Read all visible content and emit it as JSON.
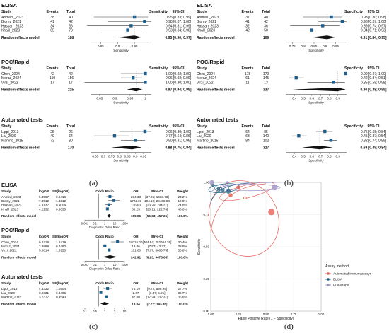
{
  "captions": [
    "(a)",
    "(b)",
    "(c)",
    "(d)"
  ],
  "panel_a": {
    "metric_header": "Sensitivity",
    "ci_header": "95% CI",
    "study_header": "Study",
    "events_header": "Events",
    "total_header": "Total",
    "axis_label": "Sensitivity",
    "random_label": "Random effects model",
    "groups": [
      {
        "title": "ELISA",
        "ticks": [
          "0.85",
          "0.9",
          "0.95"
        ],
        "axis_range": [
          0.82,
          1.0
        ],
        "studies": [
          {
            "name": "Ahmed _2023",
            "events": "38",
            "total": "40",
            "est": 0.95,
            "lo": 0.83,
            "hi": 0.99,
            "ci": "0.95  [0.83; 0.99]"
          },
          {
            "name": "Biomy_2021",
            "events": "41",
            "total": "42",
            "est": 0.98,
            "lo": 0.87,
            "hi": 1.0,
            "ci": "0.98  [0.87; 1.00]"
          },
          {
            "name": "Hassan_2023",
            "events": "34",
            "total": "36",
            "est": 0.94,
            "lo": 0.81,
            "hi": 0.99,
            "ci": "0.94  [0.81; 0.99]"
          },
          {
            "name": "Khalil_2023",
            "events": "65",
            "total": "70",
            "est": 0.93,
            "lo": 0.84,
            "hi": 0.98,
            "ci": "0.93  [0.84; 0.98]"
          }
        ],
        "random": {
          "total": "188",
          "est": 0.95,
          "lo": 0.9,
          "hi": 0.97,
          "ci": "0.95  [0.90; 0.97]"
        }
      },
      {
        "title": "POC/Rapid",
        "ticks": [
          "0.85",
          "0.9",
          "0.95",
          "1"
        ],
        "axis_range": [
          0.82,
          1.02
        ],
        "studies": [
          {
            "name": "Chen_2024",
            "events": "42",
            "total": "42",
            "est": 1.0,
            "lo": 0.92,
            "hi": 1.0,
            "ci": "1.00  [0.92; 1.00]"
          },
          {
            "name": "Moraz_2024",
            "events": "150",
            "total": "156",
            "est": 0.96,
            "lo": 0.92,
            "hi": 0.99,
            "ci": "0.96  [0.92; 0.99]"
          },
          {
            "name": "Virzi_2022",
            "events": "17",
            "total": "17",
            "est": 1.0,
            "lo": 0.8,
            "hi": 1.0,
            "ci": "1.00  [0.80; 1.00]"
          }
        ],
        "random": {
          "total": "215",
          "est": 0.97,
          "lo": 0.94,
          "hi": 0.99,
          "ci": "0.97  [0.94; 0.99]"
        }
      },
      {
        "title": "Automated tests",
        "ticks": [
          "0.65",
          "0.7",
          "0.75",
          "0.8",
          "0.85",
          "0.9",
          "0.95"
        ],
        "axis_range": [
          0.62,
          1.0
        ],
        "studies": [
          {
            "name": "Lippi_2013",
            "events": "25",
            "total": "26",
            "est": 0.96,
            "lo": 0.8,
            "hi": 1.0,
            "ci": "0.96  [0.80; 1.00]"
          },
          {
            "name": "Liu_2020",
            "events": "49",
            "total": "64",
            "est": 0.77,
            "lo": 0.64,
            "hi": 0.86,
            "ci": "0.77  [0.64; 0.86]"
          },
          {
            "name": "Martino_2015",
            "events": "72",
            "total": "80",
            "est": 0.9,
            "lo": 0.81,
            "hi": 0.96,
            "ci": "0.90  [0.81; 0.96]"
          }
        ],
        "random": {
          "total": "170",
          "est": 0.88,
          "lo": 0.75,
          "hi": 0.94,
          "ci": "0.88  [0.75; 0.94]"
        }
      }
    ]
  },
  "panel_b": {
    "metric_header": "Specificity",
    "ci_header": "95% CI",
    "study_header": "Study",
    "events_header": "Events",
    "total_header": "Total",
    "axis_label": "Specificity",
    "random_label": "Random effects model",
    "groups": [
      {
        "title": "ELISA",
        "ticks": [
          "0.75",
          "0.8",
          "0.85",
          "0.9",
          "0.95"
        ],
        "axis_range": [
          0.72,
          1.0
        ],
        "studies": [
          {
            "name": "Ahmed _2023",
            "events": "37",
            "total": "40",
            "est": 0.93,
            "lo": 0.8,
            "hi": 0.98,
            "ci": "0.93  [0.80; 0.98]"
          },
          {
            "name": "Biomy_2021",
            "events": "41",
            "total": "42",
            "est": 0.98,
            "lo": 0.87,
            "hi": 1.0,
            "ci": "0.98  [0.87; 1.00]"
          },
          {
            "name": "Hassan_2023",
            "events": "32",
            "total": "36",
            "est": 0.89,
            "lo": 0.74,
            "hi": 0.97,
            "ci": "0.89  [0.74; 0.97]"
          },
          {
            "name": "Khalil_2023",
            "events": "42",
            "total": "50",
            "est": 0.84,
            "lo": 0.71,
            "hi": 0.93,
            "ci": "0.84  [0.71; 0.93]"
          }
        ],
        "random": {
          "total": "169",
          "est": 0.91,
          "lo": 0.84,
          "hi": 0.95,
          "ci": "0.91  [0.84; 0.95]"
        }
      },
      {
        "title": "POC/Rapid",
        "ticks": [
          "0.4",
          "0.5",
          "0.6",
          "0.7",
          "0.8",
          "0.9"
        ],
        "axis_range": [
          0.3,
          1.0
        ],
        "studies": [
          {
            "name": "Chen_2024",
            "events": "178",
            "total": "179",
            "est": 0.99,
            "lo": 0.97,
            "hi": 1.0,
            "ci": "0.99  [0.97; 1.00]"
          },
          {
            "name": "Moraz_2024",
            "events": "61",
            "total": "145",
            "est": 0.42,
            "lo": 0.34,
            "hi": 0.51,
            "ci": "0.42  [0.34; 0.51]"
          },
          {
            "name": "Virzi_2022",
            "events": "11",
            "total": "13",
            "est": 0.85,
            "lo": 0.55,
            "hi": 0.98,
            "ci": "0.85  [0.55; 0.98]"
          }
        ],
        "random": {
          "total": "337",
          "est": 0.9,
          "lo": 0.38,
          "hi": 0.99,
          "ci": "0.90  [0.38; 0.99]"
        }
      },
      {
        "title": "Automated tests",
        "ticks": [
          "0.4",
          "0.5",
          "0.6",
          "0.7",
          "0.8",
          "0.9"
        ],
        "axis_range": [
          0.3,
          1.0
        ],
        "studies": [
          {
            "name": "Lippi_2013",
            "events": "64",
            "total": "85",
            "est": 0.75,
            "lo": 0.65,
            "hi": 0.84,
            "ci": "0.75  [0.65; 0.84]"
          },
          {
            "name": "Liu_2020",
            "events": "63",
            "total": "140",
            "est": 0.45,
            "lo": 0.37,
            "hi": 0.54,
            "ci": "0.45  [0.37; 0.54]"
          },
          {
            "name": "Martino_2015",
            "events": "84",
            "total": "102",
            "est": 0.82,
            "lo": 0.74,
            "hi": 0.89,
            "ci": "0.82  [0.74; 0.89]"
          }
        ],
        "random": {
          "total": "327",
          "est": 0.69,
          "lo": 0.49,
          "hi": 0.84,
          "ci": "0.69  [0.49; 0.84]"
        }
      }
    ]
  },
  "panel_c": {
    "headers": {
      "study": "Study",
      "logor": "logOR",
      "se": "SE(logOR)",
      "plot": "Odds Ratio",
      "or": "OR",
      "ci": "95%-CI",
      "weight": "Weight"
    },
    "axis_label": "Diagnostic Odds Ratio",
    "random_label": "Random effects model",
    "groups": [
      {
        "title": "ELISA",
        "ticks": [
          "0.001",
          "0.1",
          "1",
          "10",
          "1000"
        ],
        "studies": [
          {
            "name": "Ahmed_2023",
            "logor": "5.4567",
            "se": "0.9416",
            "or": "234.33",
            "ci": "[37.01; 1483.73]",
            "weight": "23.2%",
            "est": 234.33,
            "lo": 37.01,
            "hi": 1483.73
          },
          {
            "name": "Biomy_2021",
            "logor": "7.4512",
            "se": "1.4312",
            "or": "1722.00",
            "ci": "[104.19; 28458.68]",
            "weight": "12.0%",
            "est": 1722,
            "lo": 104.19,
            "hi": 28458.68
          },
          {
            "name": "Hassan_2023",
            "logor": "4.9137",
            "se": "0.9004",
            "or": "136.00",
            "ci": "[23.29; 794.21]",
            "weight": "24.8%",
            "est": 136,
            "lo": 23.29,
            "hi": 794.21
          },
          {
            "name": "Khalil_2023",
            "logor": "4.2232",
            "se": "0.6035",
            "or": "68.25",
            "ci": "[20.91; 222.74]",
            "weight": "40.0%",
            "est": 68.25,
            "lo": 20.91,
            "hi": 222.74
          }
        ],
        "random": {
          "or": "159.06",
          "ci": "[55.33; 457.25]",
          "weight": "100.0%",
          "est": 159.06,
          "lo": 55.33,
          "hi": 457.25
        }
      },
      {
        "title": "POC/Rapid",
        "ticks": [
          "0.001",
          "0.1",
          "1",
          "10",
          "1000"
        ],
        "studies": [
          {
            "name": "Chen_2024",
            "logor": "9.2218",
            "se": "1.6419",
            "or": "10115.00",
            "ci": "[404.94; 252664.39]",
            "weight": "30.4%",
            "est": 10115,
            "lo": 404.94,
            "hi": 252664.39
          },
          {
            "name": "Moraz_2024",
            "logor": "2.9889",
            "se": "0.4490",
            "or": "19.86",
            "ci": "[7.53; 43.77]",
            "weight": "38.8%",
            "est": 19.86,
            "lo": 7.53,
            "hi": 43.77
          },
          {
            "name": "Virzi_2022",
            "logor": "5.0814",
            "se": "1.5950",
            "or": "161.00",
            "ci": "[7.07; 3666.75]",
            "weight": "30.8%",
            "est": 161,
            "lo": 7.07,
            "hi": 3666.75
          }
        ],
        "random": {
          "or": "242.91",
          "ci": "[6.23; 9475.65]",
          "weight": "100.0%",
          "est": 242.91,
          "lo": 6.23,
          "hi": 9475.65
        }
      },
      {
        "title": "Automated tests",
        "ticks": [
          "0.1",
          "0.5",
          "1",
          "2",
          "10"
        ],
        "studies": [
          {
            "name": "Lippi_2013",
            "logor": "4.3332",
            "se": "1.0504",
            "or": "76.19",
            "ci": "[9.72; 596.99]",
            "weight": "27.7%",
            "est": 76.19,
            "lo": 9.72,
            "hi": 596.99
          },
          {
            "name": "Liu_2020",
            "logor": "0.9831",
            "se": "0.3405",
            "or": "2.67",
            "ci": "[1.37; 5.21]",
            "weight": "36.7%",
            "est": 2.67,
            "lo": 1.37,
            "hi": 5.21
          },
          {
            "name": "Martino_2015",
            "logor": "3.7377",
            "se": "0.4543",
            "or": "42.00",
            "ci": "[17.24; 102.31]",
            "weight": "35.6%",
            "est": 42,
            "lo": 17.24,
            "hi": 102.31
          }
        ],
        "random": {
          "or": "18.04",
          "ci": "[2.27; 143.36]",
          "weight": "100.0%",
          "est": 18.04,
          "lo": 2.27,
          "hi": 143.36
        }
      }
    ]
  },
  "panel_d": {
    "xlabel": "False Positive Rate (1 − Specificity)",
    "ylabel": "Sensitivity",
    "xticks": [
      "0.00",
      "0.25",
      "0.50",
      "0.75",
      "1.00"
    ],
    "yticks": [
      "0.00",
      "0.25",
      "0.50",
      "0.75",
      "1.00"
    ],
    "legend_title": "Assay method",
    "legend": [
      {
        "label": "Automated immunoassays",
        "color": "#e4574e"
      },
      {
        "label": "ELISA",
        "color": "#1a5e82"
      },
      {
        "label": "POC/Rapid",
        "color": "#9b8fc7"
      }
    ]
  },
  "chart_data": [
    {
      "type": "scatter",
      "title": "",
      "xlabel": "False Positive Rate (1 − Specificity)",
      "ylabel": "Sensitivity",
      "xlim": [
        0,
        1
      ],
      "ylim": [
        0,
        1
      ],
      "grid": true,
      "legend_position": "right",
      "series": [
        {
          "name": "Automated immunoassays",
          "x": [
            0.25,
            0.55,
            0.18
          ],
          "y": [
            0.96,
            0.77,
            0.9
          ],
          "summary": {
            "x": 0.31,
            "y": 0.88
          }
        },
        {
          "name": "ELISA",
          "x": [
            0.07,
            0.02,
            0.11,
            0.16
          ],
          "y": [
            0.95,
            0.98,
            0.94,
            0.93
          ],
          "summary": {
            "x": 0.09,
            "y": 0.95
          }
        },
        {
          "name": "POC/Rapid",
          "x": [
            0.01,
            0.58,
            0.15
          ],
          "y": [
            1.0,
            0.96,
            1.0
          ],
          "summary": {
            "x": 0.1,
            "y": 0.97
          }
        }
      ]
    }
  ]
}
